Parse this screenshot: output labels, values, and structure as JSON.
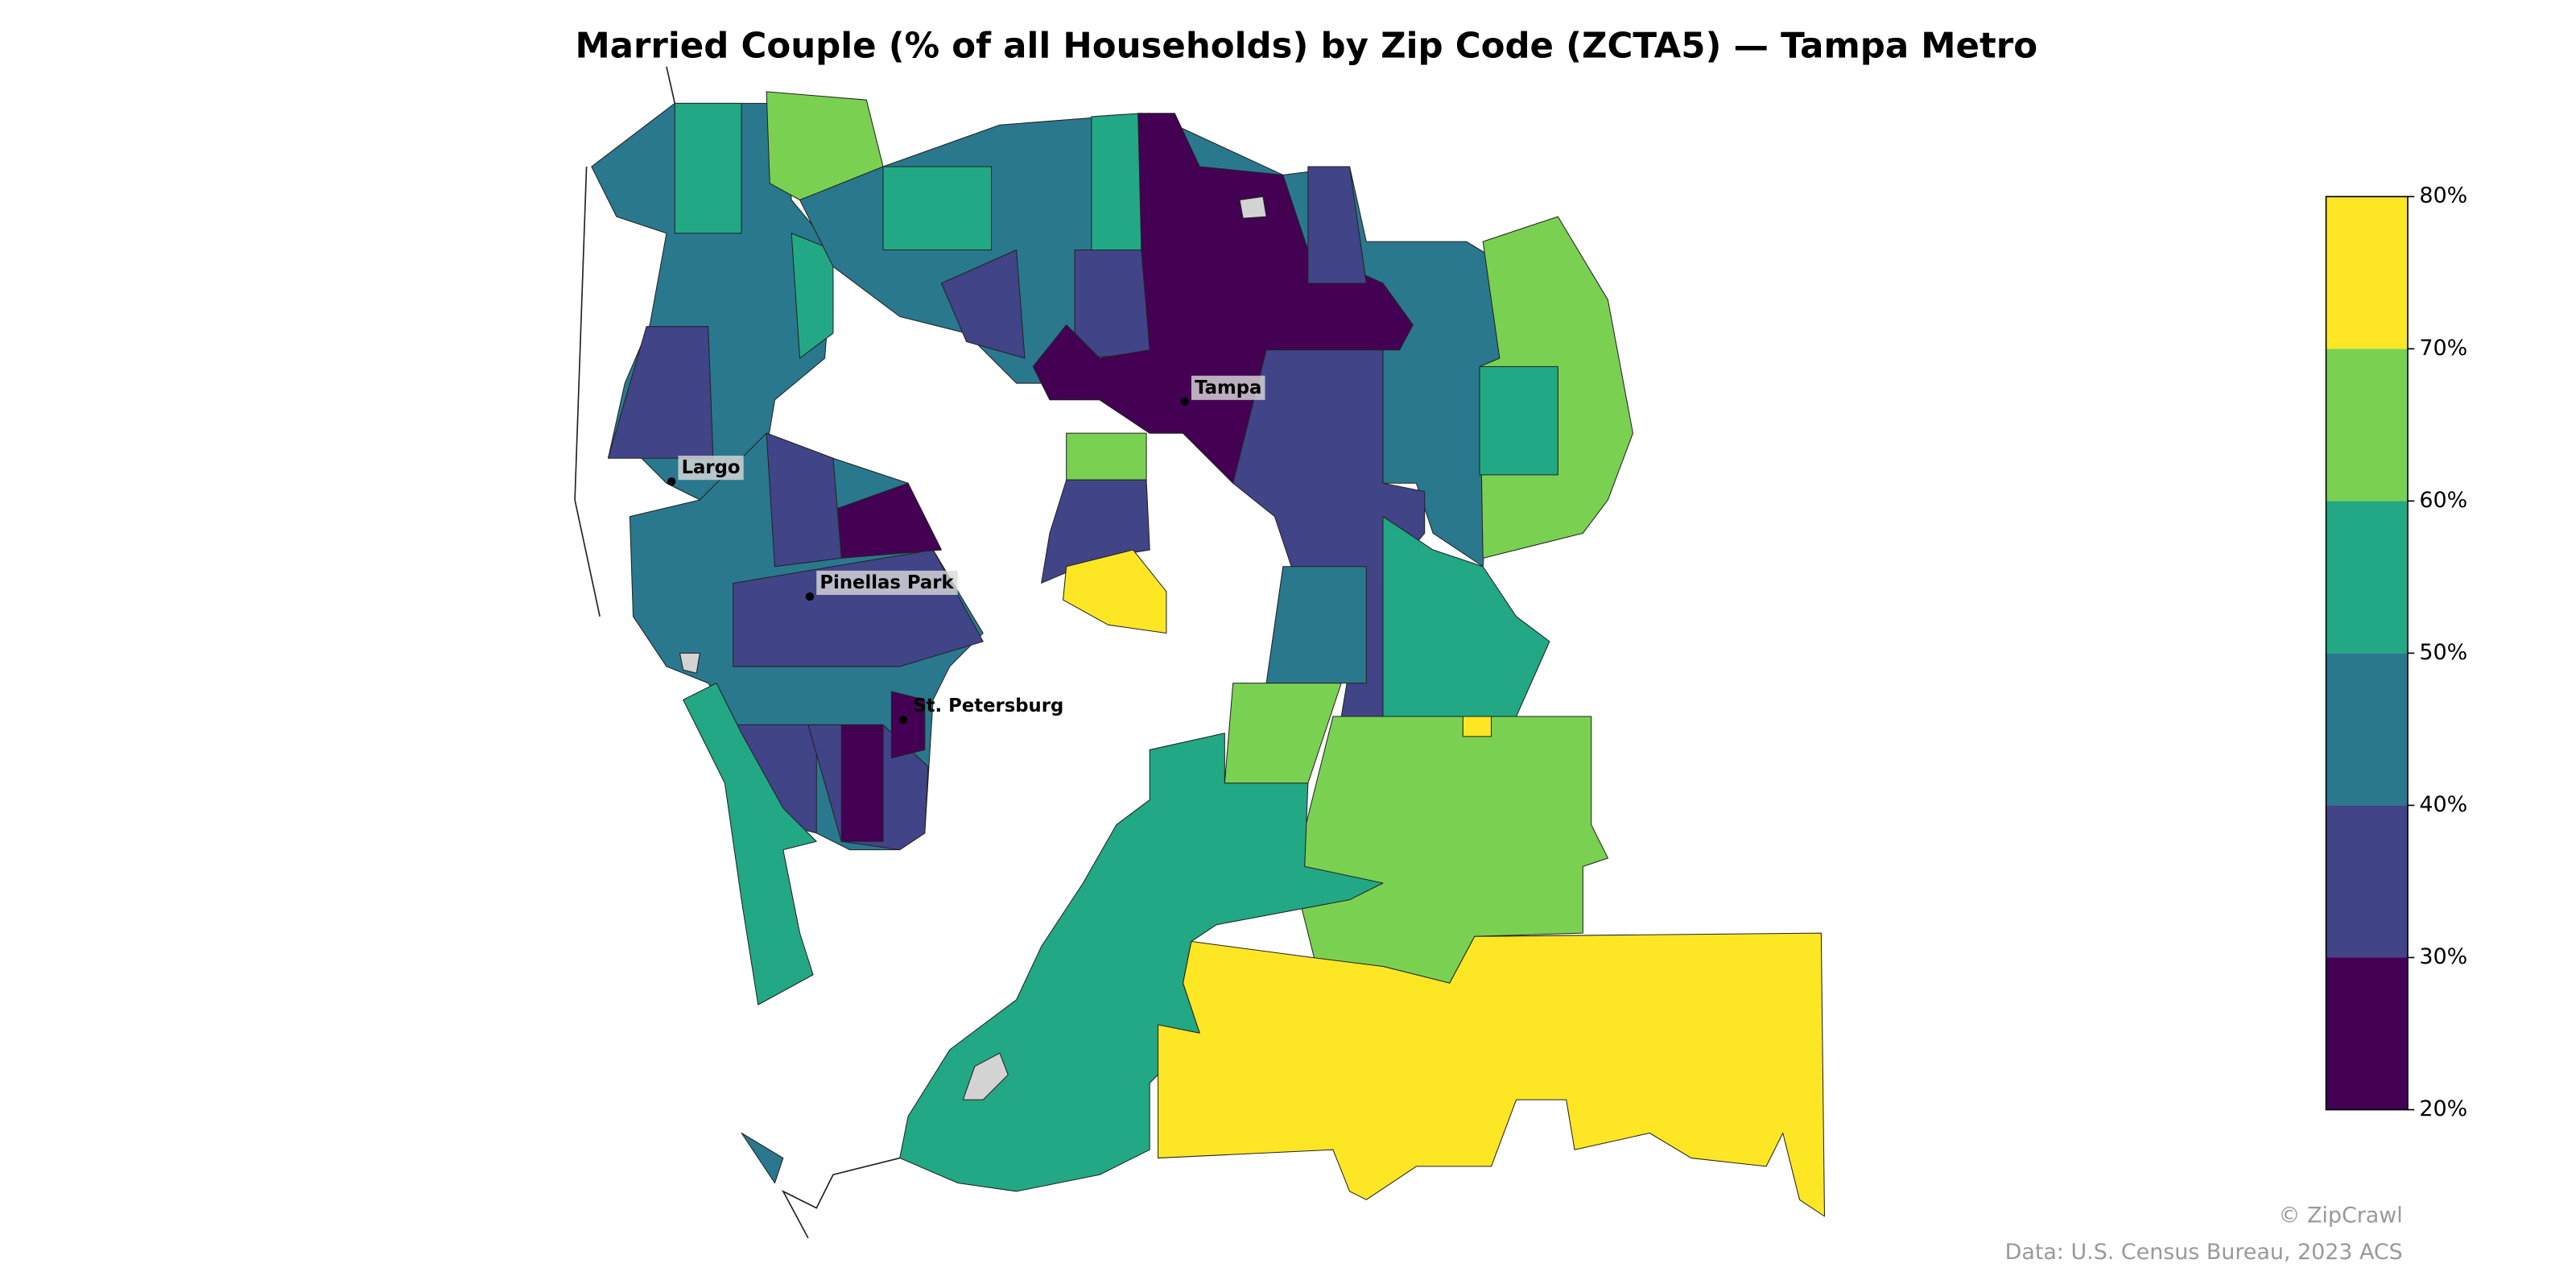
{
  "map": {
    "title": "Married Couple (% of all Households) by Zip Code (ZCTA5) — Tampa Metro",
    "cities": [
      "Tampa",
      "Largo",
      "Pinellas Park",
      "St. Petersburg"
    ],
    "colorbar": {
      "lim": [
        20,
        80
      ],
      "colors": [
        "#440154",
        "#414487",
        "#2a788e",
        "#22a884",
        "#7ad151",
        "#fde725"
      ],
      "ticks": [
        {
          "value": 20,
          "label": "20%"
        },
        {
          "value": 30,
          "label": "30%"
        },
        {
          "value": 40,
          "label": "40%"
        },
        {
          "value": 50,
          "label": "50%"
        },
        {
          "value": 60,
          "label": "60%"
        },
        {
          "value": 70,
          "label": "70%"
        },
        {
          "value": 80,
          "label": "80%"
        }
      ]
    },
    "credit": "© ZipCrawl",
    "source": "Data: U.S. Census Bureau, 2023 ACS"
  }
}
